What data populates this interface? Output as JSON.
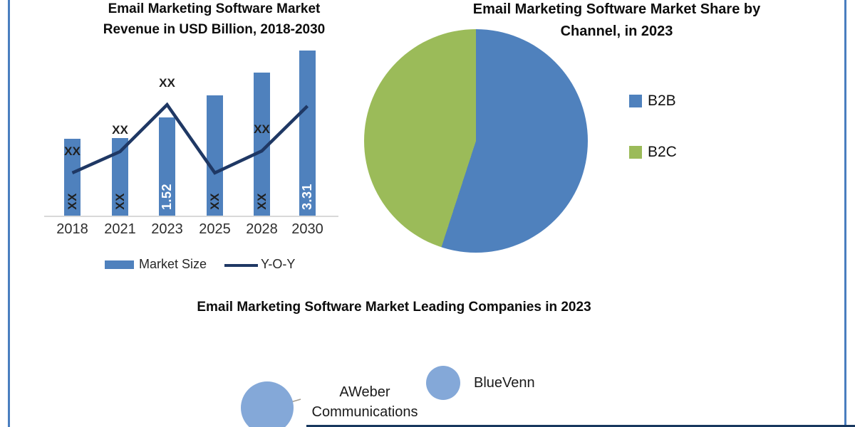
{
  "colors": {
    "bar_blue": "#4F81BD",
    "line_navy": "#1F3864",
    "pie_blue": "#4F81BD",
    "pie_green": "#9BBB59",
    "bubble_blue": "#84A8D8",
    "border_blue": "#4A7EBF",
    "bottom_line_navy": "#17375E",
    "axis_gray": "#D9D9D9"
  },
  "revenue_chart": {
    "title": "Email Marketing Software Market Revenue in USD Billion, 2018-2030",
    "legend": {
      "market_size": "Market Size",
      "yoy": "Y-O-Y"
    }
  },
  "share_chart": {
    "title": "Email Marketing Software Market Share by Channel, in 2023",
    "legend": [
      {
        "label": "B2B"
      },
      {
        "label": "B2C"
      }
    ]
  },
  "companies_chart": {
    "title": "Email Marketing Software Market Leading Companies in 2023",
    "companies": [
      {
        "name": "AWeber Communications"
      },
      {
        "name": "BlueVenn"
      }
    ]
  },
  "chart_data": [
    {
      "type": "bar",
      "subtype": "combo-bar-line",
      "title": "Email Marketing Software Market Revenue in USD Billion, 2018-2030",
      "categories": [
        "2018",
        "2021",
        "2023",
        "2025",
        "2028",
        "2030"
      ],
      "ylabel": "Revenue in USD Billion",
      "gridlines": false,
      "legend_position": "bottom",
      "series": [
        {
          "name": "Market Size",
          "type": "bar",
          "unit": "USD Billion",
          "data_labels": [
            "XX",
            "XX",
            "1.52",
            "XX",
            "XX",
            "3.31"
          ],
          "known_values": {
            "2023": 1.52,
            "2030": 3.31
          },
          "values_relative": [
            0.466,
            0.47,
            0.595,
            0.728,
            0.866,
            1.0
          ],
          "label_inverted": [
            false,
            false,
            true,
            false,
            false,
            true
          ],
          "color": "#4F81BD"
        },
        {
          "name": "Y-O-Y",
          "type": "line",
          "point_labels": [
            "XX",
            "XX",
            "XX",
            "",
            "XX",
            ""
          ],
          "values_relative": [
            0.259,
            0.388,
            0.672,
            0.259,
            0.392,
            0.664
          ],
          "color": "#1F3864"
        }
      ]
    },
    {
      "type": "pie",
      "title": "Email Marketing Software Market Share by Channel, in 2023",
      "labels": [
        "B2B",
        "B2C"
      ],
      "values_pct_est": [
        55,
        45
      ],
      "colors": [
        "#4F81BD",
        "#9BBB59"
      ],
      "start_angle_deg": 0,
      "direction": "clockwise",
      "legend_position": "right"
    },
    {
      "type": "scatter",
      "subtype": "bubble",
      "title": "Email Marketing Software Market Leading Companies in 2023",
      "points": [
        {
          "label": "AWeber Communications",
          "bubble_radius_px": 37
        },
        {
          "label": "BlueVenn",
          "bubble_radius_px": 24
        }
      ],
      "color": "#84A8D8"
    }
  ]
}
